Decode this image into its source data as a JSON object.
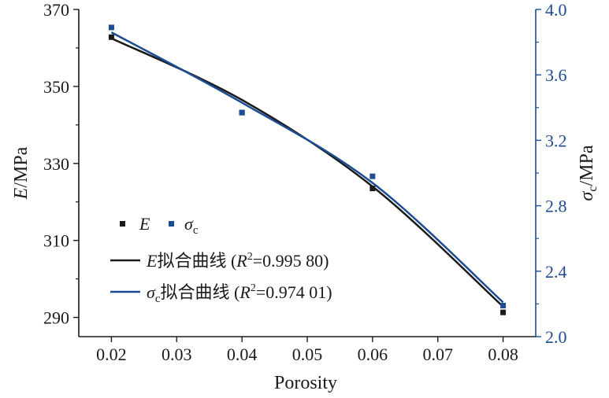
{
  "chart_data": {
    "type": "scatter",
    "xlabel": "Porosity",
    "ylabel_left_italic": "E",
    "ylabel_left_unit": "/MPa",
    "ylabel_right_symbol": "σ",
    "ylabel_right_sub": "c",
    "ylabel_right_unit": "/MPa",
    "xlim": [
      0.015,
      0.085
    ],
    "xticks": [
      "0.02",
      "0.03",
      "0.04",
      "0.05",
      "0.06",
      "0.07",
      "0.08"
    ],
    "ylim_left": [
      285,
      370
    ],
    "yticks_left": [
      "290",
      "310",
      "330",
      "350",
      "370"
    ],
    "ylim_right": [
      2.0,
      4.0
    ],
    "yticks_right": [
      "2.0",
      "2.4",
      "2.8",
      "3.2",
      "3.6",
      "4.0"
    ],
    "x": [
      0.02,
      0.04,
      0.06,
      0.08
    ],
    "series": [
      {
        "name": "E",
        "axis": "left",
        "values": [
          362.8,
          343.2,
          323.5,
          291.3
        ],
        "color": "#1a1a1a",
        "fit_values": [
          362.5,
          346.5,
          324.0,
          292.8
        ],
        "fit_label_prefix": "E",
        "fit_label_cn": "拟合曲线",
        "fit_label_r2": "=0.995 80)"
      },
      {
        "name": "σ",
        "name_sub": "c",
        "axis": "right",
        "values": [
          3.89,
          3.37,
          2.98,
          2.19
        ],
        "color": "#1e4c94",
        "fit_values": [
          3.86,
          3.43,
          2.94,
          2.21
        ],
        "fit_label_prefix": "σ",
        "fit_label_sub": "c",
        "fit_label_cn": "拟合曲线",
        "fit_label_r2": "=0.974 01)"
      }
    ],
    "legend_r_letter": "R",
    "legend_r_sup": "2",
    "legend_open": " (",
    "legend_placement": "bottom-left",
    "grid": false
  }
}
